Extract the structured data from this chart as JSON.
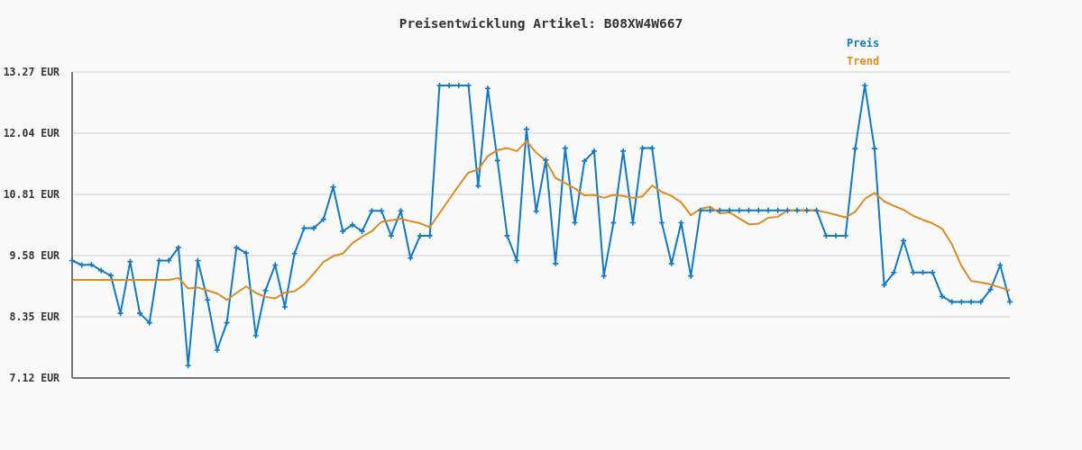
{
  "chart_data": {
    "type": "line",
    "title": "Preisentwicklung Artikel: B08XW4W667",
    "categories": [
      null,
      null,
      null,
      null,
      null,
      null,
      null,
      null,
      null,
      null,
      null,
      null,
      null,
      null,
      null,
      null,
      null,
      null,
      null,
      null,
      null,
      null,
      null,
      null,
      null,
      null,
      null,
      null,
      null,
      null,
      null,
      null,
      null,
      null,
      null,
      null,
      null,
      null,
      null,
      null,
      null,
      null,
      null,
      null,
      null,
      null,
      null,
      null,
      null,
      null,
      null,
      null,
      null,
      null,
      null,
      null,
      null,
      null,
      null,
      null,
      null,
      null,
      null,
      null,
      null,
      null,
      null,
      null,
      null,
      null,
      null,
      null,
      null,
      null,
      null,
      null,
      null,
      null,
      null,
      null,
      null,
      null,
      null,
      null,
      null,
      null,
      null,
      null,
      null,
      null,
      null,
      null,
      null,
      null,
      null,
      null,
      null,
      null
    ],
    "series": [
      {
        "name": "Preis",
        "color": "#1279c6",
        "marker": "cross",
        "values": [
          9.48,
          9.39,
          9.4,
          9.28,
          9.18,
          8.42,
          9.46,
          8.42,
          8.23,
          9.48,
          9.48,
          9.74,
          7.37,
          9.48,
          8.69,
          7.68,
          8.23,
          9.74,
          9.63,
          7.97,
          8.88,
          9.39,
          8.55,
          9.62,
          10.13,
          10.13,
          10.31,
          10.96,
          10.07,
          10.2,
          10.07,
          10.48,
          10.48,
          9.98,
          10.48,
          9.53,
          9.98,
          9.98,
          13.0,
          13.0,
          13.0,
          13.0,
          10.98,
          12.94,
          11.49,
          9.98,
          9.48,
          12.12,
          10.47,
          11.5,
          9.42,
          11.74,
          10.24,
          11.48,
          11.68,
          9.17,
          10.24,
          11.68,
          10.24,
          11.74,
          11.74,
          10.24,
          9.42,
          10.24,
          9.17,
          10.49,
          10.49,
          10.49,
          10.49,
          10.49,
          10.49,
          10.49,
          10.49,
          10.49,
          10.49,
          10.49,
          10.49,
          10.49,
          9.98,
          9.98,
          9.98,
          11.73,
          13.0,
          11.73,
          8.99,
          9.24,
          9.88,
          9.24,
          9.24,
          9.24,
          8.76,
          8.65,
          8.65,
          8.65,
          8.65,
          8.9,
          9.39,
          8.65
        ]
      },
      {
        "name": "Trend",
        "color": "#e08a20",
        "marker": "none",
        "values": [
          9.09,
          9.09,
          9.09,
          9.09,
          9.09,
          9.09,
          9.09,
          9.09,
          9.09,
          9.09,
          9.09,
          9.13,
          8.92,
          8.94,
          8.88,
          8.82,
          8.69,
          8.83,
          8.96,
          8.83,
          8.75,
          8.72,
          8.84,
          8.86,
          9.0,
          9.22,
          9.45,
          9.57,
          9.62,
          9.83,
          9.96,
          10.07,
          10.26,
          10.29,
          10.32,
          10.27,
          10.23,
          10.15,
          10.43,
          10.71,
          10.99,
          11.25,
          11.31,
          11.58,
          11.7,
          11.74,
          11.68,
          11.88,
          11.65,
          11.49,
          11.14,
          11.04,
          10.93,
          10.79,
          10.8,
          10.74,
          10.8,
          10.78,
          10.74,
          10.77,
          10.99,
          10.86,
          10.78,
          10.65,
          10.39,
          10.52,
          10.56,
          10.43,
          10.45,
          10.33,
          10.21,
          10.22,
          10.34,
          10.36,
          10.49,
          10.49,
          10.49,
          10.49,
          10.45,
          10.4,
          10.35,
          10.46,
          10.72,
          10.84,
          10.67,
          10.58,
          10.5,
          10.38,
          10.3,
          10.23,
          10.12,
          9.81,
          9.37,
          9.07,
          9.04,
          9.0,
          8.94,
          8.88
        ]
      }
    ],
    "ylim": [
      7.12,
      13.27
    ],
    "yticks": [
      {
        "value": 7.12,
        "label": "7.12 EUR"
      },
      {
        "value": 8.35,
        "label": "8.35 EUR"
      },
      {
        "value": 9.58,
        "label": "9.58 EUR"
      },
      {
        "value": 10.81,
        "label": "10.81 EUR"
      },
      {
        "value": 12.04,
        "label": "12.04 EUR"
      },
      {
        "value": 13.27,
        "label": "13.27 EUR"
      }
    ],
    "grid": "y",
    "legend": "top right",
    "tick_labels": "y"
  }
}
